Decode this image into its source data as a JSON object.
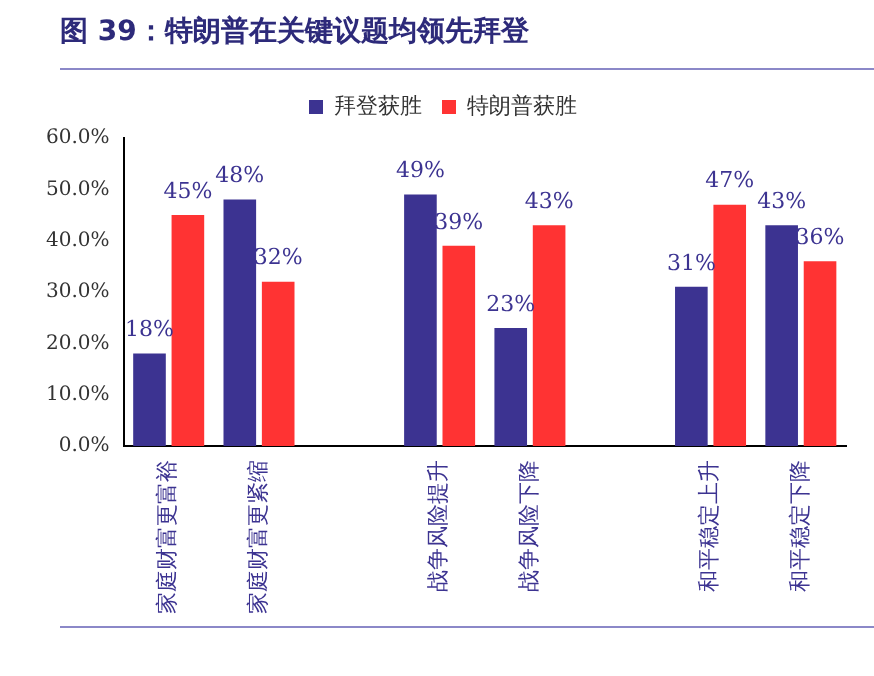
{
  "chart_data": {
    "type": "bar",
    "title": "图 39：特朗普在关键议题均领先拜登",
    "categories": [
      "家庭财富更富裕",
      "家庭财富更紧缩",
      null,
      "战争风险提升",
      "战争风险下降",
      null,
      "和平稳定上升",
      "和平稳定下降"
    ],
    "series": [
      {
        "name": "拜登获胜",
        "color": "#3c3391",
        "values": [
          18,
          48,
          null,
          49,
          23,
          null,
          31,
          43
        ],
        "value_labels": [
          "18%",
          "48%",
          null,
          "49%",
          "23%",
          null,
          "31%",
          "43%"
        ]
      },
      {
        "name": "特朗普获胜",
        "color": "#ff3333",
        "values": [
          45,
          32,
          null,
          39,
          43,
          null,
          47,
          36
        ],
        "value_labels": [
          "45%",
          "32%",
          null,
          "39%",
          "43%",
          null,
          "47%",
          "36%"
        ]
      }
    ],
    "ylim": [
      0,
      60
    ],
    "yticks": [
      {
        "value": 0,
        "label": "0.0%"
      },
      {
        "value": 10,
        "label": "10.0%"
      },
      {
        "value": 20,
        "label": "20.0%"
      },
      {
        "value": 30,
        "label": "30.0%"
      },
      {
        "value": 40,
        "label": "40.0%"
      },
      {
        "value": 50,
        "label": "50.0%"
      },
      {
        "value": 60,
        "label": "60.0%"
      }
    ],
    "legend": "top",
    "grid": false
  }
}
